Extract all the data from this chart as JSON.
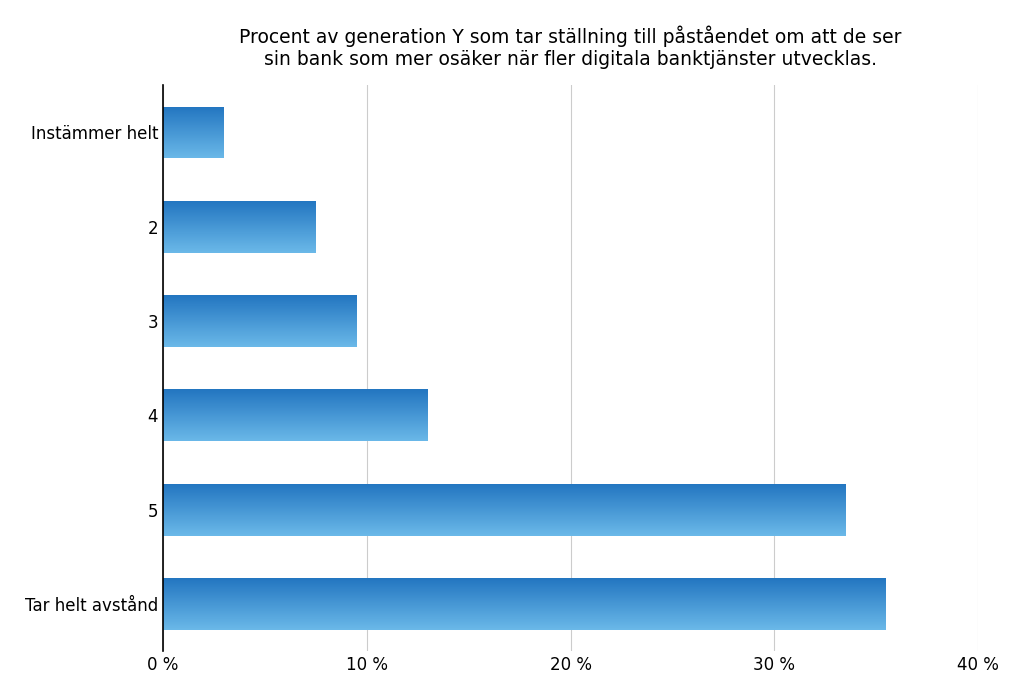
{
  "title": "Procent av generation Y som tar ställning till påståendet om att de ser\nsin bank som mer osäker när fler digitala banktjänster utvecklas.",
  "categories": [
    "Instämmer helt",
    "2",
    "3",
    "4",
    "5",
    "Tar helt avstånd"
  ],
  "values": [
    3.0,
    7.5,
    9.5,
    13.0,
    33.5,
    35.5
  ],
  "bar_color_light": "#6ab8e8",
  "bar_color_dark": "#2275c0",
  "background_color": "#ffffff",
  "xlim": [
    0,
    40
  ],
  "xtick_labels": [
    "0 %",
    "10 %",
    "20 %",
    "30 %",
    "40 %"
  ],
  "xtick_values": [
    0,
    10,
    20,
    30,
    40
  ],
  "title_fontsize": 13.5,
  "tick_fontsize": 12,
  "label_fontsize": 12,
  "grid_color": "#cccccc",
  "spine_color": "#000000"
}
